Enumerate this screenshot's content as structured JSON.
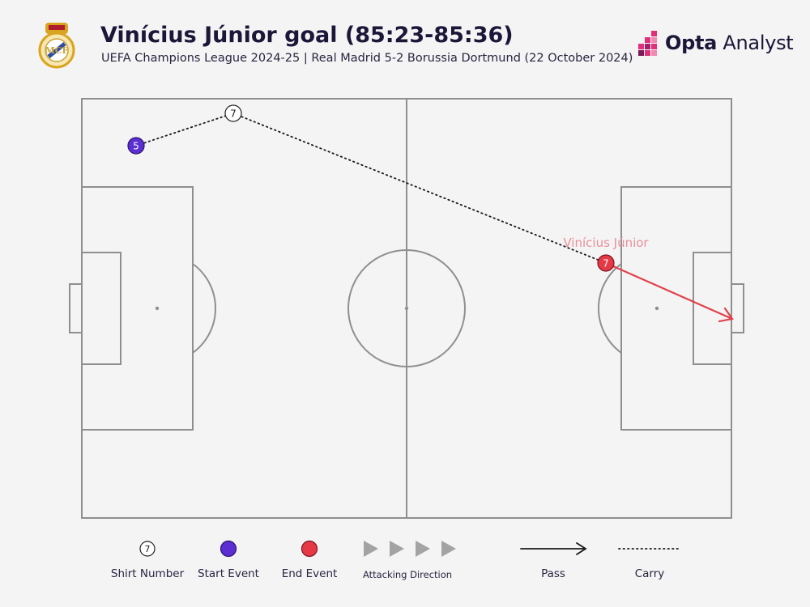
{
  "header": {
    "title": "Vinícius Júnior goal (85:23-85:36)",
    "subtitle": "UEFA Champions League 2024-25 | Real Madrid 5-2 Borussia Dortmund (22 October 2024)",
    "brand_bold": "Opta",
    "brand_rest": " Analyst",
    "crest": "real-madrid-crest"
  },
  "events": {
    "start_marker": "5",
    "waypoint_marker": "7",
    "end_marker": "7",
    "player_label": "Vinícius Júnior"
  },
  "legend": {
    "shirt_number_glyph": "7",
    "shirt_number": "Shirt Number",
    "start_event": "Start Event",
    "end_event": "End Event",
    "attacking_direction": "Attacking Direction",
    "pass": "Pass",
    "carry": "Carry"
  },
  "colors": {
    "start": "#5b2fd1",
    "end": "#e63946",
    "pass_arrow": "#e2414b",
    "player_label": "#e8909a",
    "pitch_lines": "#8f8f8f",
    "background": "#f4f4f4"
  }
}
